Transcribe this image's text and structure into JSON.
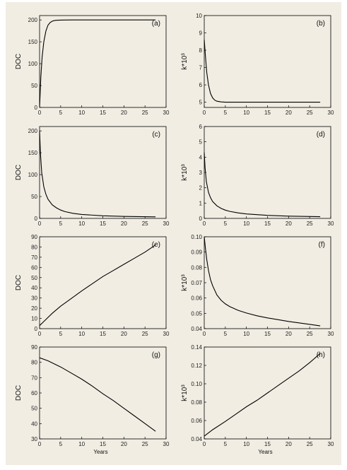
{
  "chart_data": [
    {
      "type": "line",
      "panel_label": "(a)",
      "ylabel": "DOC",
      "xlabel": "",
      "xlim": [
        0,
        30
      ],
      "ylim": [
        0,
        210
      ],
      "xticks": [
        0,
        5,
        10,
        15,
        20,
        25,
        30
      ],
      "yticks": [
        0,
        50,
        100,
        150,
        200
      ],
      "ytick_labels": [
        "0",
        "50",
        "100",
        "150",
        "200"
      ],
      "grid": false,
      "series": [
        {
          "x": [
            0,
            0.3,
            0.6,
            1,
            1.5,
            2,
            2.5,
            3,
            3.5,
            4,
            5,
            6,
            8,
            10,
            15,
            20,
            27.5
          ],
          "y": [
            0,
            70,
            115,
            150,
            175,
            188,
            194,
            197,
            198.5,
            199.2,
            199.7,
            199.9,
            200,
            200,
            200,
            200,
            200
          ]
        }
      ]
    },
    {
      "type": "line",
      "panel_label": "(b)",
      "ylabel": "k*10³",
      "xlabel": "",
      "xlim": [
        0,
        30
      ],
      "ylim": [
        4.7,
        10
      ],
      "xticks": [
        0,
        5,
        10,
        15,
        20,
        25,
        30
      ],
      "yticks": [
        5,
        6,
        7,
        8,
        9,
        10
      ],
      "ytick_labels": [
        "5",
        "6",
        "7",
        "8",
        "9",
        "10"
      ],
      "grid": false,
      "series": [
        {
          "x": [
            0,
            0.3,
            0.6,
            1,
            1.5,
            2,
            2.5,
            3,
            4,
            5,
            6,
            8,
            10,
            15,
            20,
            27.5
          ],
          "y": [
            8.6,
            7.6,
            6.7,
            6.0,
            5.5,
            5.25,
            5.12,
            5.06,
            5.02,
            5.0,
            5.0,
            5.0,
            5.0,
            5.0,
            5.0,
            5.0
          ]
        }
      ]
    },
    {
      "type": "line",
      "panel_label": "(c)",
      "ylabel": "DOC",
      "xlabel": "",
      "xlim": [
        0,
        30
      ],
      "ylim": [
        0,
        210
      ],
      "xticks": [
        0,
        5,
        10,
        15,
        20,
        25,
        30
      ],
      "yticks": [
        0,
        50,
        100,
        150,
        200
      ],
      "ytick_labels": [
        "0",
        "50",
        "100",
        "150",
        "200"
      ],
      "grid": false,
      "series": [
        {
          "x": [
            0,
            0.2,
            0.5,
            1,
            1.5,
            2,
            3,
            4,
            5,
            6,
            8,
            10,
            15,
            20,
            27.5
          ],
          "y": [
            200,
            150,
            105,
            72,
            55,
            44,
            31,
            24,
            19,
            15.5,
            11.5,
            9,
            6,
            4.5,
            3.5
          ]
        }
      ]
    },
    {
      "type": "line",
      "panel_label": "(d)",
      "ylabel": "k*10³",
      "xlabel": "",
      "xlim": [
        0,
        30
      ],
      "ylim": [
        0,
        6
      ],
      "xticks": [
        0,
        5,
        10,
        15,
        20,
        25,
        30
      ],
      "yticks": [
        0,
        1,
        2,
        3,
        4,
        5,
        6
      ],
      "ytick_labels": [
        "0",
        "1",
        "2",
        "3",
        "4",
        "5",
        "6"
      ],
      "grid": false,
      "series": [
        {
          "x": [
            0,
            0.2,
            0.5,
            1,
            1.5,
            2,
            3,
            4,
            5,
            6,
            8,
            10,
            15,
            20,
            27.5
          ],
          "y": [
            4.3,
            3.3,
            2.4,
            1.7,
            1.35,
            1.1,
            0.82,
            0.65,
            0.54,
            0.46,
            0.36,
            0.29,
            0.2,
            0.15,
            0.11
          ]
        }
      ]
    },
    {
      "type": "line",
      "panel_label": "(e)",
      "ylabel": "DOC",
      "xlabel": "",
      "xlim": [
        0,
        30
      ],
      "ylim": [
        0,
        90
      ],
      "xticks": [
        0,
        5,
        10,
        15,
        20,
        25,
        30
      ],
      "yticks": [
        0,
        10,
        20,
        30,
        40,
        50,
        60,
        70,
        80,
        90
      ],
      "ytick_labels": [
        "0",
        "10",
        "20",
        "30",
        "40",
        "50",
        "60",
        "70",
        "80",
        "90"
      ],
      "grid": false,
      "series": [
        {
          "x": [
            0,
            1,
            2,
            3,
            5,
            7,
            10,
            12.5,
            15,
            17.5,
            20,
            22.5,
            25,
            27.5
          ],
          "y": [
            3,
            7,
            11,
            15,
            22,
            28,
            37,
            44,
            51,
            57,
            63,
            69,
            75,
            82
          ]
        }
      ]
    },
    {
      "type": "line",
      "panel_label": "(f)",
      "ylabel": "k*10³",
      "xlabel": "",
      "xlim": [
        0,
        30
      ],
      "ylim": [
        0.04,
        0.1
      ],
      "xticks": [
        0,
        5,
        10,
        15,
        20,
        25,
        30
      ],
      "yticks": [
        0.04,
        0.05,
        0.06,
        0.07,
        0.08,
        0.09,
        0.1
      ],
      "ytick_labels": [
        "0.04",
        "0.05",
        "0.06",
        "0.07",
        "0.08",
        "0.09",
        "0.10"
      ],
      "grid": false,
      "series": [
        {
          "x": [
            0,
            0.3,
            0.6,
            1,
            1.5,
            2,
            3,
            4,
            5,
            6,
            8,
            10,
            12.5,
            15,
            20,
            25,
            27.5
          ],
          "y": [
            0.1,
            0.092,
            0.085,
            0.078,
            0.072,
            0.068,
            0.062,
            0.0585,
            0.0562,
            0.0545,
            0.052,
            0.0502,
            0.0484,
            0.047,
            0.0447,
            0.0428,
            0.0418
          ]
        }
      ]
    },
    {
      "type": "line",
      "panel_label": "(g)",
      "ylabel": "DOC",
      "xlabel": "Years",
      "xlim": [
        0,
        30
      ],
      "ylim": [
        30,
        90
      ],
      "xticks": [
        0,
        5,
        10,
        15,
        20,
        25,
        30
      ],
      "yticks": [
        30,
        40,
        50,
        60,
        70,
        80,
        90
      ],
      "ytick_labels": [
        "30",
        "40",
        "50",
        "60",
        "70",
        "80",
        "90"
      ],
      "grid": false,
      "series": [
        {
          "x": [
            0,
            2,
            5,
            7.5,
            10,
            12.5,
            15,
            17.5,
            20,
            22.5,
            25,
            27.5
          ],
          "y": [
            83,
            81,
            77,
            73,
            69,
            64.5,
            59.5,
            55,
            50,
            45,
            40,
            35
          ]
        }
      ]
    },
    {
      "type": "line",
      "panel_label": "(h)",
      "ylabel": "k*10³",
      "xlabel": "Years",
      "xlim": [
        0,
        30
      ],
      "ylim": [
        0.04,
        0.14
      ],
      "xticks": [
        0,
        5,
        10,
        15,
        20,
        25,
        30
      ],
      "yticks": [
        0.04,
        0.06,
        0.08,
        0.1,
        0.12,
        0.14
      ],
      "ytick_labels": [
        "0.04",
        "0.06",
        "0.08",
        "0.10",
        "0.12",
        "0.14"
      ],
      "grid": false,
      "series": [
        {
          "x": [
            0,
            2,
            5,
            7.5,
            10,
            12.5,
            15,
            17.5,
            20,
            22.5,
            25,
            27.5
          ],
          "y": [
            0.043,
            0.05,
            0.059,
            0.067,
            0.075,
            0.082,
            0.09,
            0.098,
            0.106,
            0.114,
            0.123,
            0.133
          ]
        }
      ]
    }
  ]
}
